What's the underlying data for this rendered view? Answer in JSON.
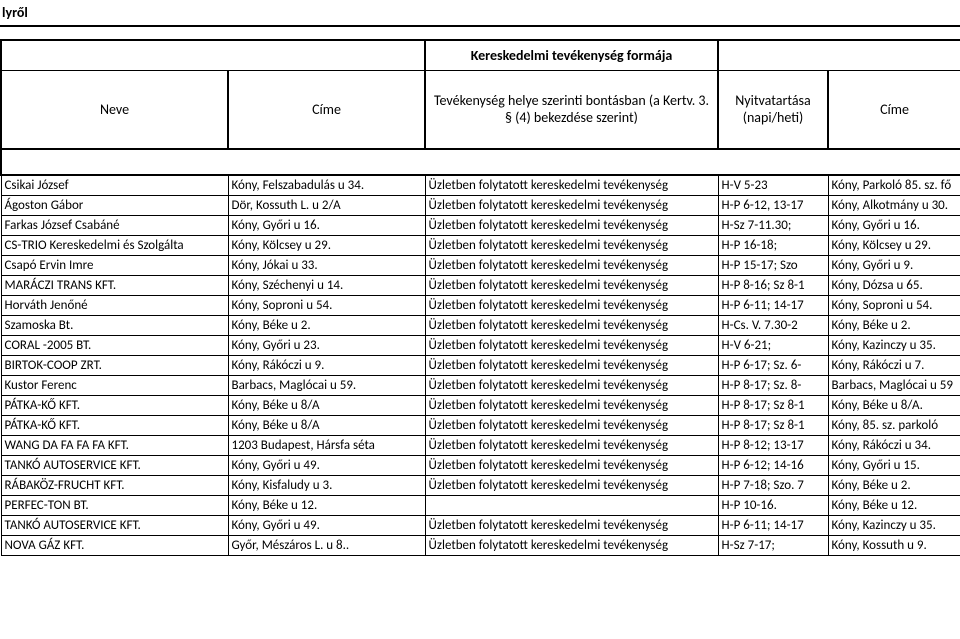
{
  "page_title_fragment": "lyről",
  "header": {
    "group_label": "Kereskedelmi tevékenység formája",
    "col_name": "Neve",
    "col_address": "Címe",
    "col_activity": "Tevékenység helye szerinti bontásban (a Kertv. 3. § (4) bekezdése szerint)",
    "col_hours": "Nyitvatartása (napi/heti)",
    "col_addr2": "Címe"
  },
  "activity_text": "Üzletben folytatott kereskedelmi tevékenység",
  "rows": [
    {
      "name": "Csikai József",
      "addr": "Kóny, Felszabadulás u 34.",
      "hours": "H-V 5-23",
      "addr2": "Kóny, Parkoló 85. sz. fő"
    },
    {
      "name": "Ágoston Gábor",
      "addr": "Dör, Kossuth L. u 2/A",
      "hours": "H-P 6-12, 13-17",
      "addr2": "Kóny, Alkotmány u 30."
    },
    {
      "name": "Farkas József Csabáné",
      "addr": "Kóny, Győri u 16.",
      "hours": "H-Sz 7-11.30;",
      "addr2": "Kóny, Győri u 16."
    },
    {
      "name": "CS-TRIO Kereskedelmi és Szolgálta",
      "addr": "Kóny, Kölcsey u 29.",
      "hours": "H-P 16-18;",
      "addr2": "Kóny, Kölcsey u 29."
    },
    {
      "name": "Csapó Ervin Imre",
      "addr": "Kóny, Jókai u 33.",
      "hours": "H-P 15-17; Szo",
      "addr2": "Kóny, Győri u 9."
    },
    {
      "name": "MARÁCZI TRANS KFT.",
      "addr": "Kóny, Széchenyi u 14.",
      "hours": "H-P 8-16; Sz 8-1",
      "addr2": "Kóny, Dózsa u 65."
    },
    {
      "name": "Horváth Jenőné",
      "addr": "Kóny, Soproni u 54.",
      "hours": "H-P 6-11; 14-17",
      "addr2": "Kóny, Soproni u 54."
    },
    {
      "name": "Szamoska Bt.",
      "addr": "Kóny, Béke u 2.",
      "hours": "H-Cs. V. 7.30-2",
      "addr2": "Kóny, Béke u 2."
    },
    {
      "name": "CORAL -2005 BT.",
      "addr": "Kóny, Győri u 23.",
      "hours": "H-V 6-21;",
      "addr2": "Kóny, Kazinczy u 35."
    },
    {
      "name": "BIRTOK-COOP ZRT.",
      "addr": "Kóny, Rákóczi u 9.",
      "hours": "H-P 6-17; Sz. 6-",
      "addr2": "Kóny, Rákóczi u 7."
    },
    {
      "name": "Kustor Ferenc",
      "addr": "Barbacs, Maglócai u 59.",
      "hours": "H-P 8-17; Sz. 8-",
      "addr2": "Barbacs, Maglócai u 59"
    },
    {
      "name": "PÁTKA-KŐ KFT.",
      "addr": "Kóny, Béke u 8/A",
      "hours": "H-P 8-17; Sz 8-1",
      "addr2": "Kóny, Béke u 8/A."
    },
    {
      "name": "PÁTKA-KŐ KFT.",
      "addr": "Kóny, Béke u 8/A",
      "hours": "H-P 8-17; Sz 8-1",
      "addr2": "Kóny, 85. sz. parkoló"
    },
    {
      "name": "WANG DA FA FA FA KFT.",
      "addr": "1203 Budapest, Hársfa séta",
      "hours": "H-P 8-12; 13-17",
      "addr2": "Kóny, Rákóczi u 34."
    },
    {
      "name": "TANKÓ AUTOSERVICE KFT.",
      "addr": "Kóny, Győri u 49.",
      "hours": "H-P 6-12; 14-16",
      "addr2": "Kóny, Győri u 15."
    },
    {
      "name": "RÁBAKÖZ-FRUCHT KFT.",
      "addr": "Kóny, Kisfaludy u 3.",
      "hours": "H-P 7-18; Szo. 7",
      "addr2": "Kóny, Béke u 2."
    },
    {
      "name": "PERFEC-TON BT.",
      "addr": "Kóny, Béke u 12.",
      "activity": "",
      "hours": "H-P 10-16.",
      "addr2": "Kóny, Béke u 12."
    },
    {
      "name": "TANKÓ AUTOSERVICE KFT.",
      "addr": "Kóny, Győri u 49.",
      "hours": "H-P 6-11; 14-17",
      "addr2": "Kóny, Kazinczy u 35."
    },
    {
      "name": "NOVA GÁZ KFT.",
      "addr": "Győr, Mészáros L. u 8..",
      "hours": "H-Sz 7-17;",
      "addr2": "Kóny, Kossuth u 9."
    }
  ]
}
